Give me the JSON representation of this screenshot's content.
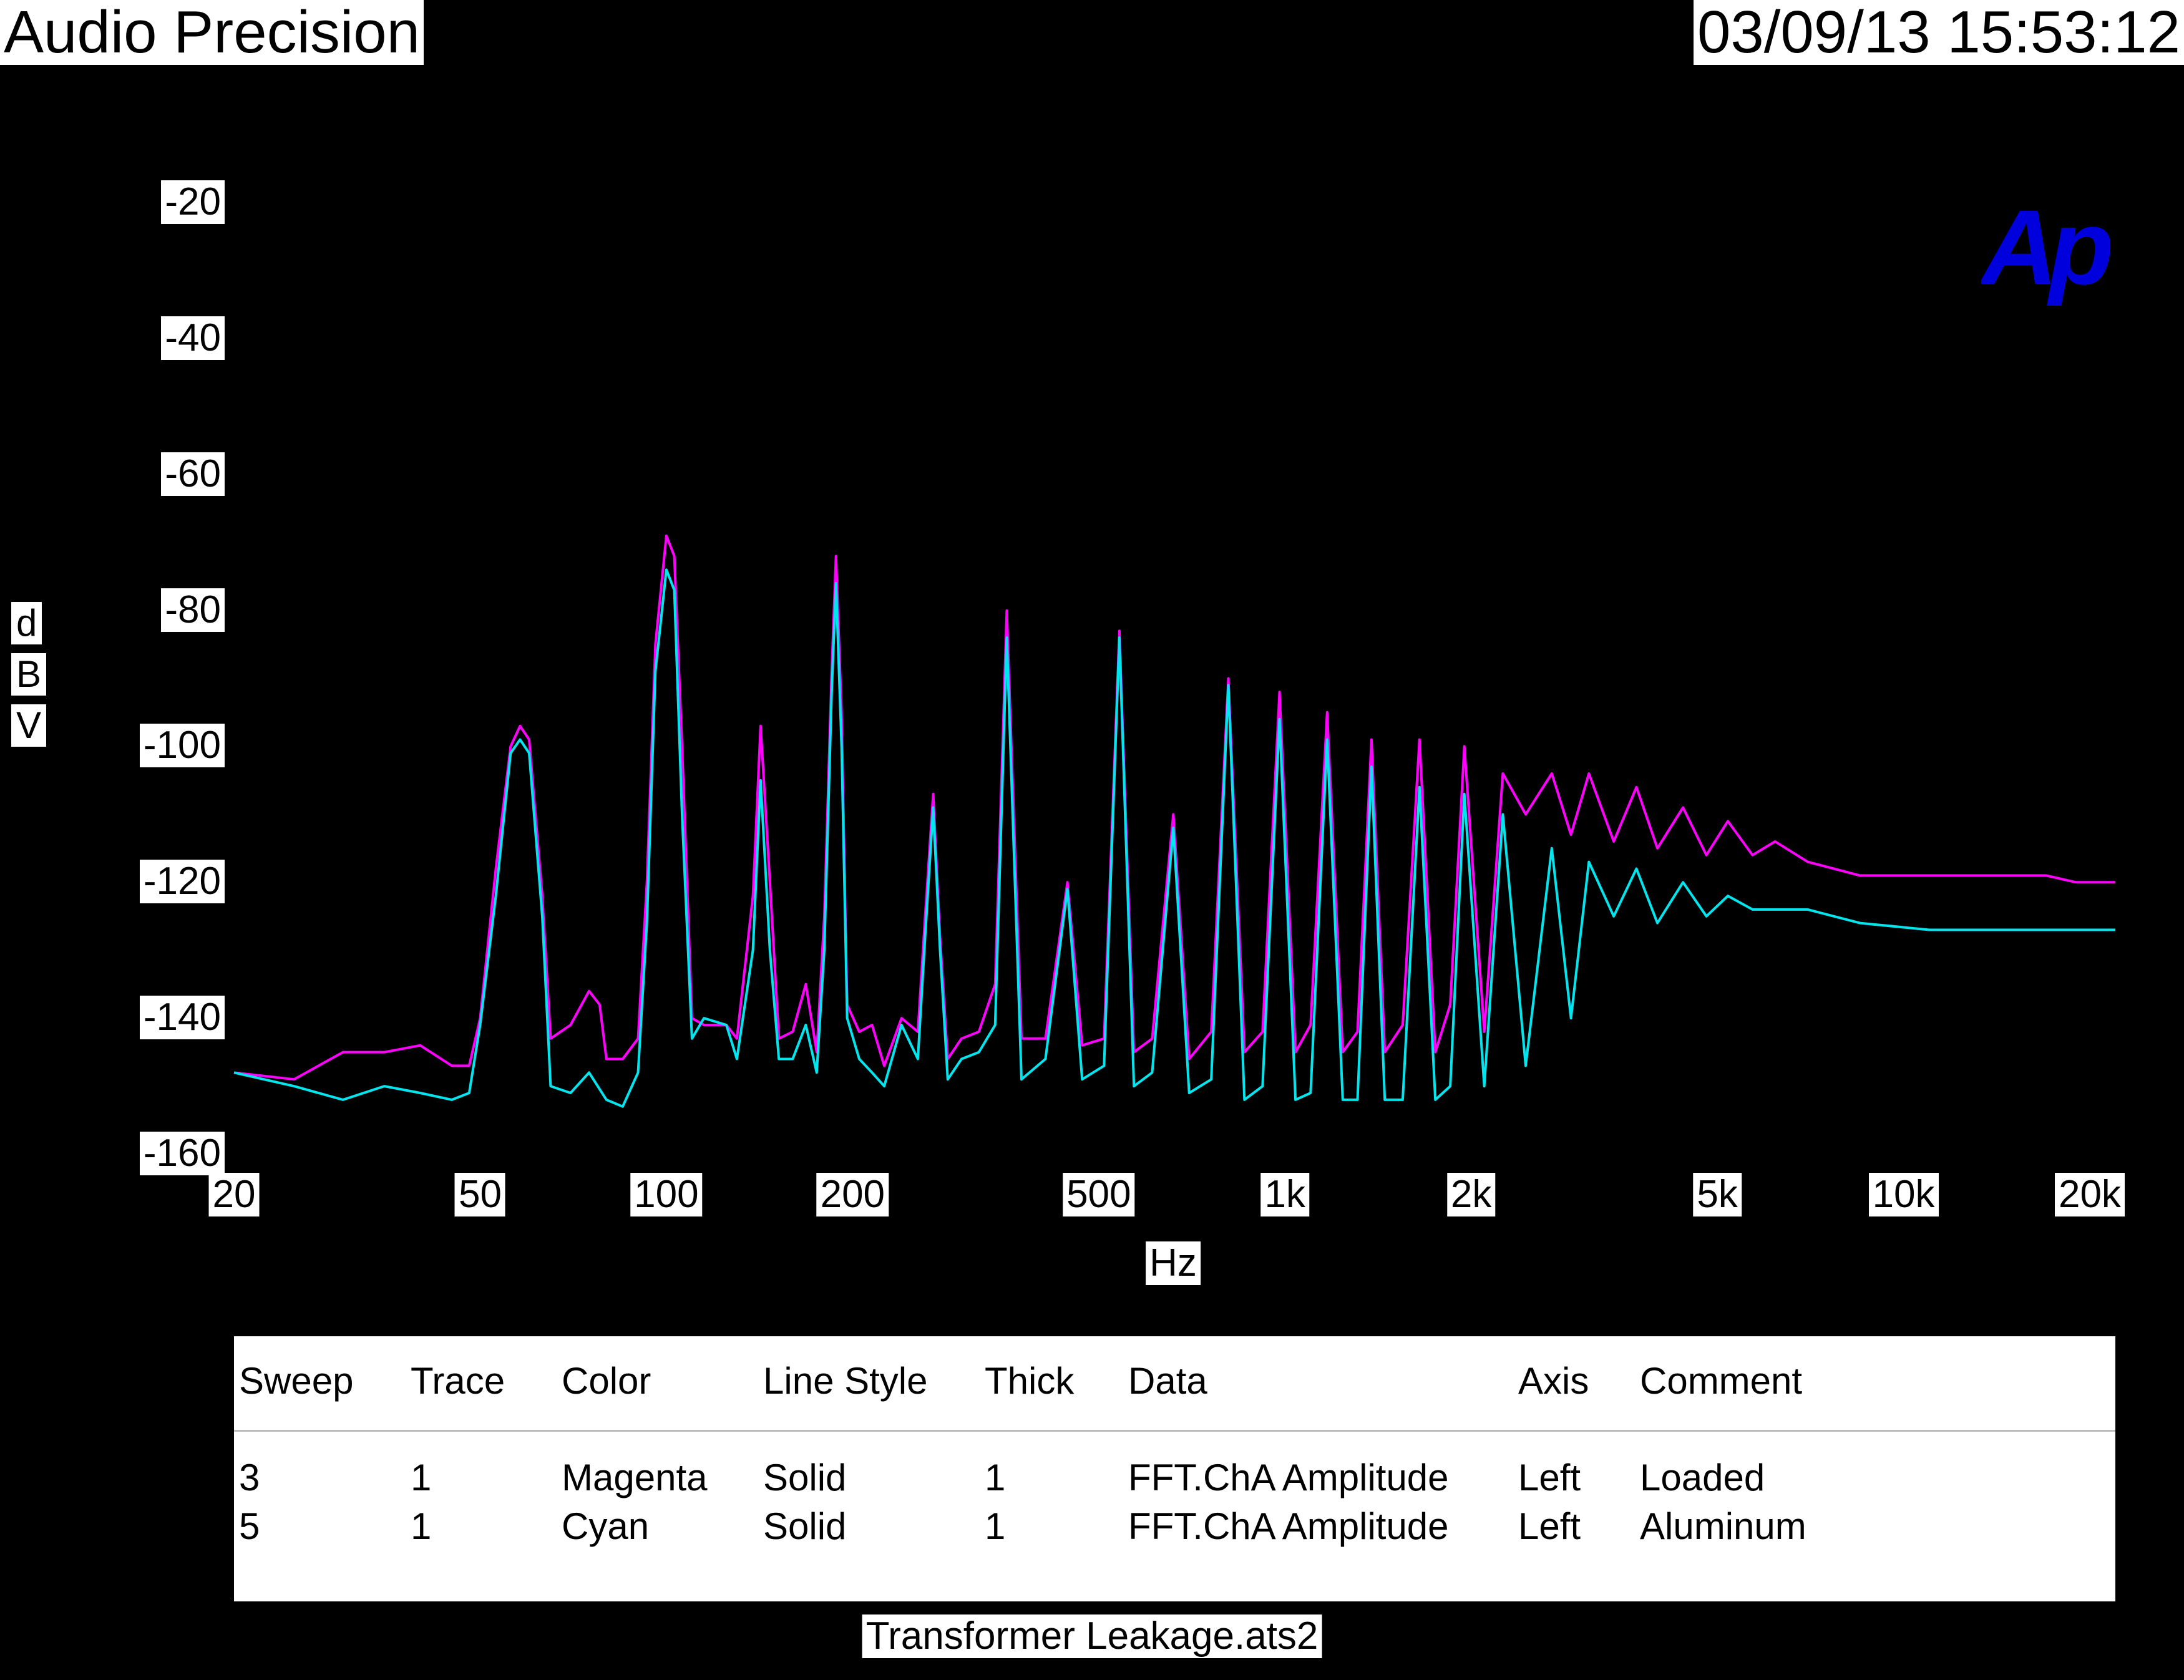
{
  "header": {
    "brand": "Audio Precision",
    "timestamp": "03/09/13 15:53:12"
  },
  "logo_text": "Ap",
  "colors": {
    "background": "#000000",
    "magenta": "#ff00ff",
    "cyan": "#00e5ee",
    "logo": "#0000dd"
  },
  "chart_data": {
    "type": "line",
    "title": "",
    "xlabel": "Hz",
    "ylabel": "dBV",
    "ylabel_chars": [
      "d",
      "B",
      "V"
    ],
    "x_scale": "log",
    "xlim": [
      20,
      22000
    ],
    "ylim": [
      -160,
      -20
    ],
    "y_ticks": [
      -20,
      -40,
      -60,
      -80,
      -100,
      -120,
      -140,
      -160
    ],
    "x_ticks": [
      {
        "value": 20,
        "label": "20"
      },
      {
        "value": 50,
        "label": "50"
      },
      {
        "value": 100,
        "label": "100"
      },
      {
        "value": 200,
        "label": "200"
      },
      {
        "value": 500,
        "label": "500"
      },
      {
        "value": 1000,
        "label": "1k"
      },
      {
        "value": 2000,
        "label": "2k"
      },
      {
        "value": 5000,
        "label": "5k"
      },
      {
        "value": 10000,
        "label": "10k"
      },
      {
        "value": 20000,
        "label": "20k"
      }
    ],
    "grid": false,
    "series": [
      {
        "name": "Loaded",
        "color": "#ff00ff",
        "points": [
          [
            20,
            -148
          ],
          [
            25,
            -149
          ],
          [
            30,
            -145
          ],
          [
            35,
            -145
          ],
          [
            40,
            -144
          ],
          [
            45,
            -147
          ],
          [
            48,
            -147
          ],
          [
            50,
            -140
          ],
          [
            53,
            -118
          ],
          [
            56,
            -100
          ],
          [
            58,
            -97
          ],
          [
            60,
            -99
          ],
          [
            63,
            -122
          ],
          [
            65,
            -143
          ],
          [
            70,
            -141
          ],
          [
            75,
            -136
          ],
          [
            78,
            -138
          ],
          [
            80,
            -146
          ],
          [
            85,
            -146
          ],
          [
            90,
            -143
          ],
          [
            93,
            -120
          ],
          [
            96,
            -85
          ],
          [
            100,
            -69
          ],
          [
            103,
            -72
          ],
          [
            106,
            -100
          ],
          [
            110,
            -140
          ],
          [
            115,
            -141
          ],
          [
            125,
            -141
          ],
          [
            130,
            -143
          ],
          [
            138,
            -122
          ],
          [
            142,
            -97
          ],
          [
            147,
            -120
          ],
          [
            152,
            -143
          ],
          [
            160,
            -142
          ],
          [
            168,
            -135
          ],
          [
            175,
            -145
          ],
          [
            180,
            -125
          ],
          [
            185,
            -89
          ],
          [
            188,
            -72
          ],
          [
            192,
            -95
          ],
          [
            196,
            -138
          ],
          [
            205,
            -142
          ],
          [
            215,
            -141
          ],
          [
            225,
            -147
          ],
          [
            240,
            -140
          ],
          [
            255,
            -142
          ],
          [
            262,
            -125
          ],
          [
            270,
            -107
          ],
          [
            277,
            -128
          ],
          [
            285,
            -146
          ],
          [
            300,
            -143
          ],
          [
            320,
            -142
          ],
          [
            340,
            -135
          ],
          [
            355,
            -80
          ],
          [
            375,
            -143
          ],
          [
            410,
            -143
          ],
          [
            445,
            -120
          ],
          [
            470,
            -144
          ],
          [
            510,
            -143
          ],
          [
            540,
            -83
          ],
          [
            570,
            -145
          ],
          [
            610,
            -143
          ],
          [
            660,
            -110
          ],
          [
            700,
            -146
          ],
          [
            760,
            -142
          ],
          [
            810,
            -90
          ],
          [
            860,
            -145
          ],
          [
            920,
            -142
          ],
          [
            980,
            -92
          ],
          [
            1040,
            -145
          ],
          [
            1100,
            -141
          ],
          [
            1170,
            -95
          ],
          [
            1240,
            -145
          ],
          [
            1310,
            -142
          ],
          [
            1380,
            -99
          ],
          [
            1450,
            -145
          ],
          [
            1550,
            -141
          ],
          [
            1650,
            -99
          ],
          [
            1750,
            -145
          ],
          [
            1850,
            -138
          ],
          [
            1950,
            -100
          ],
          [
            2100,
            -142
          ],
          [
            2250,
            -104
          ],
          [
            2450,
            -110
          ],
          [
            2700,
            -104
          ],
          [
            2900,
            -113
          ],
          [
            3100,
            -104
          ],
          [
            3400,
            -114
          ],
          [
            3700,
            -106
          ],
          [
            4000,
            -115
          ],
          [
            4400,
            -109
          ],
          [
            4800,
            -116
          ],
          [
            5200,
            -111
          ],
          [
            5700,
            -116
          ],
          [
            6200,
            -114
          ],
          [
            7000,
            -117
          ],
          [
            8500,
            -119
          ],
          [
            11000,
            -119
          ],
          [
            14000,
            -119
          ],
          [
            17000,
            -119
          ],
          [
            19000,
            -120
          ],
          [
            22000,
            -120
          ]
        ]
      },
      {
        "name": "Aluminum",
        "color": "#00e5ee",
        "points": [
          [
            20,
            -148
          ],
          [
            25,
            -150
          ],
          [
            30,
            -152
          ],
          [
            35,
            -150
          ],
          [
            40,
            -151
          ],
          [
            45,
            -152
          ],
          [
            48,
            -151
          ],
          [
            50,
            -141
          ],
          [
            53,
            -122
          ],
          [
            56,
            -101
          ],
          [
            58,
            -99
          ],
          [
            60,
            -101
          ],
          [
            63,
            -125
          ],
          [
            65,
            -150
          ],
          [
            70,
            -151
          ],
          [
            75,
            -148
          ],
          [
            80,
            -152
          ],
          [
            85,
            -153
          ],
          [
            90,
            -148
          ],
          [
            93,
            -126
          ],
          [
            96,
            -89
          ],
          [
            100,
            -74
          ],
          [
            103,
            -77
          ],
          [
            106,
            -110
          ],
          [
            110,
            -143
          ],
          [
            115,
            -140
          ],
          [
            125,
            -141
          ],
          [
            130,
            -146
          ],
          [
            138,
            -130
          ],
          [
            142,
            -105
          ],
          [
            147,
            -130
          ],
          [
            152,
            -146
          ],
          [
            160,
            -146
          ],
          [
            168,
            -141
          ],
          [
            175,
            -148
          ],
          [
            180,
            -130
          ],
          [
            185,
            -92
          ],
          [
            188,
            -76
          ],
          [
            192,
            -100
          ],
          [
            196,
            -140
          ],
          [
            205,
            -146
          ],
          [
            215,
            -148
          ],
          [
            225,
            -150
          ],
          [
            240,
            -141
          ],
          [
            255,
            -146
          ],
          [
            262,
            -128
          ],
          [
            270,
            -109
          ],
          [
            277,
            -130
          ],
          [
            285,
            -149
          ],
          [
            300,
            -146
          ],
          [
            320,
            -145
          ],
          [
            340,
            -141
          ],
          [
            355,
            -84
          ],
          [
            375,
            -149
          ],
          [
            410,
            -146
          ],
          [
            445,
            -121
          ],
          [
            470,
            -149
          ],
          [
            510,
            -147
          ],
          [
            540,
            -84
          ],
          [
            570,
            -150
          ],
          [
            610,
            -148
          ],
          [
            660,
            -112
          ],
          [
            700,
            -151
          ],
          [
            760,
            -149
          ],
          [
            810,
            -91
          ],
          [
            860,
            -152
          ],
          [
            920,
            -150
          ],
          [
            980,
            -96
          ],
          [
            1040,
            -152
          ],
          [
            1100,
            -151
          ],
          [
            1170,
            -99
          ],
          [
            1240,
            -152
          ],
          [
            1310,
            -152
          ],
          [
            1380,
            -103
          ],
          [
            1450,
            -152
          ],
          [
            1550,
            -152
          ],
          [
            1650,
            -106
          ],
          [
            1750,
            -152
          ],
          [
            1850,
            -150
          ],
          [
            1950,
            -107
          ],
          [
            2100,
            -150
          ],
          [
            2250,
            -110
          ],
          [
            2450,
            -147
          ],
          [
            2700,
            -115
          ],
          [
            2900,
            -140
          ],
          [
            3100,
            -117
          ],
          [
            3400,
            -125
          ],
          [
            3700,
            -118
          ],
          [
            4000,
            -126
          ],
          [
            4400,
            -120
          ],
          [
            4800,
            -125
          ],
          [
            5200,
            -122
          ],
          [
            5700,
            -124
          ],
          [
            6200,
            -124
          ],
          [
            7000,
            -124
          ],
          [
            8500,
            -126
          ],
          [
            11000,
            -127
          ],
          [
            14000,
            -127
          ],
          [
            17000,
            -127
          ],
          [
            19000,
            -127
          ],
          [
            22000,
            -127
          ]
        ]
      }
    ]
  },
  "legend": {
    "headers": [
      "Sweep",
      "Trace",
      "Color",
      "Line Style",
      "Thick",
      "Data",
      "Axis",
      "Comment"
    ],
    "rows": [
      [
        "3",
        "1",
        "Magenta",
        "Solid",
        "1",
        "FFT.ChA Amplitude",
        "Left",
        "Loaded"
      ],
      [
        "5",
        "1",
        "Cyan",
        "Solid",
        "1",
        "FFT.ChA Amplitude",
        "Left",
        "Aluminum"
      ]
    ]
  },
  "footer": {
    "filename": "Transformer Leakage.ats2"
  }
}
